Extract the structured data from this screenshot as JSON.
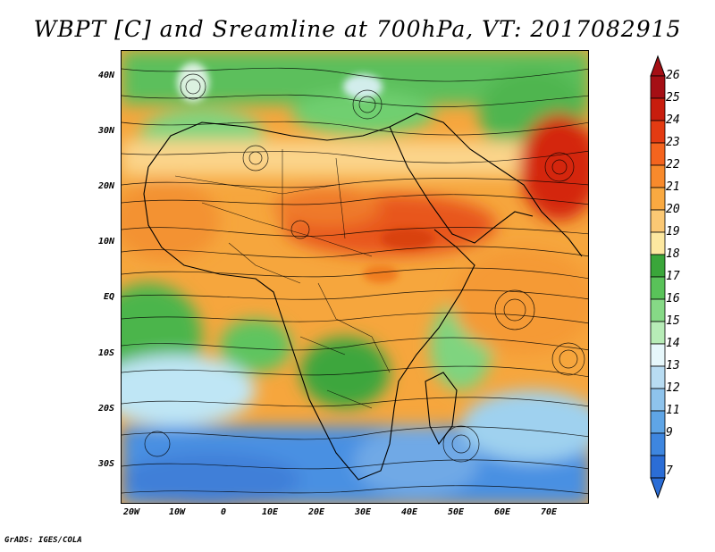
{
  "title": "WBPT [C] and Sreamline at 700hPa, VT: 2017082915",
  "credit": "GrADS: IGES/COLA",
  "lat_labels": [
    "40N",
    "30N",
    "20N",
    "10N",
    "EQ",
    "10S",
    "20S",
    "30S"
  ],
  "lon_labels": [
    "20W",
    "10W",
    "0",
    "10E",
    "20E",
    "30E",
    "40E",
    "50E",
    "60E",
    "70E"
  ],
  "colorbar": {
    "labels": [
      "26",
      "25",
      "24",
      "23",
      "22",
      "21",
      "20",
      "19",
      "18",
      "17",
      "16",
      "15",
      "14",
      "13",
      "12",
      "11",
      "9",
      "7"
    ],
    "colors": [
      "#a50f15",
      "#c81d0e",
      "#e33b12",
      "#f4641e",
      "#f88a2c",
      "#f9a941",
      "#fbc874",
      "#fde8a0",
      "#3aa63a",
      "#59c259",
      "#86d986",
      "#b7ecb7",
      "#e6f7fb",
      "#b8dcf2",
      "#8ec3ec",
      "#5fa5e6",
      "#3e86df",
      "#2b6dd6"
    ]
  },
  "map_icons": [
    "streamline-field-icon",
    "coastline-icon",
    "country-border-icon"
  ]
}
